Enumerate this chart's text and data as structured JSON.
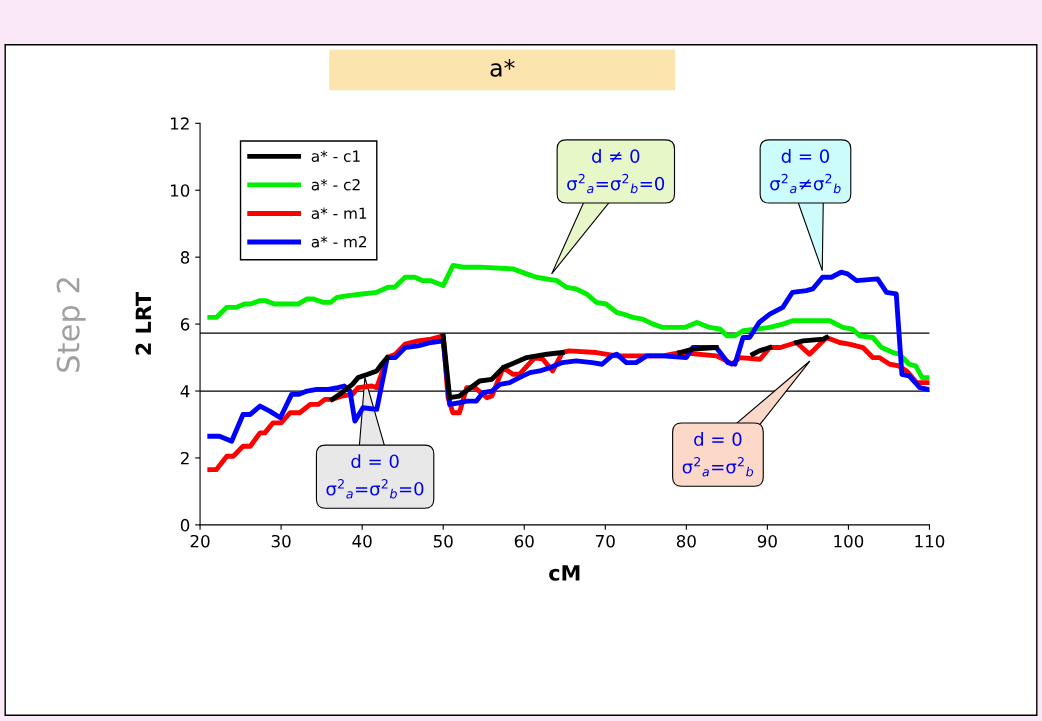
{
  "chart_data": {
    "type": "line",
    "title": "a*",
    "xlabel": "cM",
    "ylabel": "2 LRT",
    "xlim": [
      20,
      110
    ],
    "xticks": [
      20,
      30,
      40,
      50,
      60,
      70,
      80,
      90,
      100,
      110
    ],
    "ylim": [
      0,
      12
    ],
    "yticks": [
      0,
      2,
      4,
      6,
      8,
      10,
      12
    ],
    "grid": false,
    "legend": "top left",
    "marker": "none",
    "line_style": "solid",
    "ref_lines": [
      {
        "axis": "y",
        "value": 5.73,
        "color": "#000000"
      },
      {
        "axis": "y",
        "value": 4.0,
        "color": "#000000"
      }
    ],
    "series": [
      {
        "name": "a* - c1",
        "color": "#000000",
        "x": [
          36.3,
          37.5,
          38.8,
          39.5,
          40.7,
          41.8,
          42.4,
          43.1,
          46,
          50,
          50.8,
          52,
          54.5,
          56,
          57.4,
          60.3,
          62.8,
          64.7,
          72,
          79.2,
          80.8,
          83.7,
          86,
          88.2,
          89,
          90.3,
          92,
          93.6,
          94.4,
          96.9,
          97.3
        ],
        "values": [
          3.75,
          3.95,
          4.2,
          4.4,
          4.5,
          4.6,
          4.8,
          5.0,
          null,
          5.65,
          3.8,
          3.85,
          4.3,
          4.35,
          4.7,
          5.0,
          5.1,
          5.15,
          null,
          5.15,
          5.25,
          5.3,
          null,
          5.1,
          5.2,
          5.3,
          null,
          5.45,
          5.5,
          5.55,
          5.6
        ]
      },
      {
        "name": "a* - c2",
        "color": "#00ee00",
        "x": [
          21.2,
          22,
          23.3,
          24.5,
          25.5,
          26.2,
          27.4,
          28,
          29.2,
          32.1,
          33.2,
          34,
          35.2,
          36.1,
          36.9,
          38.3,
          40,
          41.8,
          43.2,
          44,
          45.3,
          46.5,
          47.4,
          48.4,
          50,
          51.2,
          52.5,
          54.5,
          58.6,
          60.3,
          61.5,
          64,
          65.2,
          66.4,
          67.7,
          68.9,
          70.1,
          71.4,
          72.2,
          73.4,
          74.6,
          75.9,
          77.1,
          79.8,
          81.3,
          82.9,
          84.2,
          85,
          86,
          87,
          88.6,
          90.3,
          91.9,
          93.1,
          97.7,
          99.3,
          100.5,
          101.4,
          103,
          104.1,
          105.5,
          106.3,
          107.5,
          108.3,
          109.1,
          109.8
        ],
        "values": [
          6.2,
          6.2,
          6.5,
          6.5,
          6.6,
          6.6,
          6.7,
          6.7,
          6.6,
          6.6,
          6.75,
          6.75,
          6.65,
          6.65,
          6.8,
          6.85,
          6.9,
          6.95,
          7.1,
          7.1,
          7.4,
          7.4,
          7.3,
          7.3,
          7.15,
          7.75,
          7.7,
          7.7,
          7.65,
          7.5,
          7.4,
          7.3,
          7.1,
          7.05,
          6.9,
          6.65,
          6.6,
          6.35,
          6.3,
          6.2,
          6.15,
          6.0,
          5.9,
          5.9,
          6.05,
          5.9,
          5.85,
          5.65,
          5.65,
          5.8,
          5.85,
          5.9,
          6.0,
          6.1,
          6.1,
          5.9,
          5.85,
          5.65,
          5.6,
          5.3,
          5.15,
          5.1,
          4.8,
          4.75,
          4.4,
          4.4
        ]
      },
      {
        "name": "a* - m1",
        "color": "#ff0000",
        "x": [
          21.2,
          22,
          23.3,
          24.1,
          25.3,
          26.2,
          27.4,
          28,
          29,
          30,
          31.1,
          32.3,
          33.6,
          34.6,
          35.4,
          36.3,
          37.5,
          38.8,
          39.5,
          41.2,
          41.8,
          43.1,
          44.1,
          45.3,
          46.9,
          48.5,
          50,
          50.6,
          51.2,
          52,
          52.9,
          53.9,
          55.4,
          56,
          57.4,
          58.6,
          59.4,
          61.3,
          62.3,
          63.5,
          64.7,
          65.5,
          68.9,
          71.4,
          74.6,
          77.1,
          79.2,
          83.7,
          85,
          85.6,
          86.6,
          89.1,
          90.3,
          91.6,
          93.6,
          95.2,
          97.3,
          98.9,
          100.1,
          101.8,
          103,
          103.8,
          105.1,
          106.2,
          107.2,
          108.4,
          109.8
        ],
        "values": [
          1.65,
          1.65,
          2.05,
          2.05,
          2.35,
          2.35,
          2.75,
          2.75,
          3.05,
          3.05,
          3.35,
          3.35,
          3.6,
          3.6,
          3.75,
          3.75,
          3.85,
          3.9,
          4.1,
          4.15,
          4.1,
          5.0,
          5.1,
          5.4,
          5.5,
          5.55,
          5.65,
          3.8,
          3.35,
          3.35,
          4.1,
          4.1,
          3.8,
          3.85,
          4.7,
          4.5,
          4.5,
          5.0,
          4.95,
          4.6,
          5.15,
          5.2,
          5.15,
          5.05,
          5.05,
          5.05,
          5.15,
          5.05,
          4.9,
          4.8,
          5.0,
          4.95,
          5.3,
          5.3,
          5.45,
          5.1,
          5.6,
          5.45,
          5.4,
          5.3,
          5.0,
          5.0,
          4.8,
          4.75,
          4.6,
          4.25,
          4.25
        ]
      },
      {
        "name": "a* - m2",
        "color": "#0000ff",
        "x": [
          21.2,
          22.4,
          23.9,
          25.3,
          26.2,
          27.4,
          28.6,
          29.9,
          31.3,
          32.2,
          33.2,
          34.4,
          35.8,
          37,
          37.8,
          38.5,
          39.1,
          40.1,
          41.8,
          43.1,
          44.1,
          45.3,
          46.9,
          48.5,
          50,
          50.8,
          52,
          52.9,
          54.1,
          54.9,
          56,
          57,
          58.2,
          59.4,
          60.7,
          61.9,
          63.2,
          64.7,
          66.4,
          68.4,
          69.6,
          70.8,
          71.4,
          72.6,
          73.8,
          75.1,
          77.1,
          80,
          80.8,
          83.7,
          85.1,
          86,
          87,
          87.8,
          89,
          90.3,
          91.9,
          93.1,
          94.8,
          95.6,
          96.8,
          97.9,
          99.1,
          99.9,
          101,
          103.6,
          104.7,
          105.9,
          106.6,
          107.5,
          108.8,
          109.8
        ],
        "values": [
          2.65,
          2.65,
          2.5,
          3.3,
          3.3,
          3.55,
          3.4,
          3.2,
          3.9,
          3.9,
          4.0,
          4.05,
          4.05,
          4.1,
          4.15,
          4.0,
          3.1,
          3.5,
          3.45,
          5.0,
          5.0,
          5.3,
          5.35,
          5.45,
          5.5,
          3.6,
          3.65,
          3.7,
          3.7,
          3.95,
          4.0,
          4.2,
          4.25,
          4.4,
          4.55,
          4.6,
          4.7,
          4.85,
          4.9,
          4.85,
          4.8,
          5.05,
          5.1,
          4.85,
          4.85,
          5.05,
          5.05,
          5.0,
          5.3,
          5.3,
          4.85,
          4.8,
          5.6,
          5.6,
          6.05,
          6.3,
          6.5,
          6.95,
          7.0,
          7.05,
          7.4,
          7.4,
          7.55,
          7.5,
          7.3,
          7.35,
          6.95,
          6.9,
          4.5,
          4.45,
          4.1,
          4.05
        ]
      }
    ],
    "annotations": [
      "d ≠ 0\nσ$^{2}$$_{a}$=σ$^{2}$$_{b}$=0",
      "d = 0\nσ$^{2}$$_{a}$≠σ$^{2}$$_{b}$",
      "d = 0\nσ$^{2}$$_{a}$=σ$^{2}$$_{b}$=0",
      "d = 0\nσ$^{2}$$_{a}$=σ$^{2}$$_{b}$",
      "Step 2"
    ]
  }
}
